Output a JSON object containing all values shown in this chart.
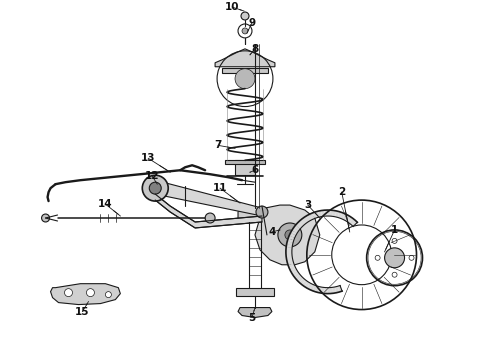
{
  "background_color": "#ffffff",
  "line_color": "#1a1a1a",
  "text_color": "#111111",
  "figsize": [
    4.9,
    3.6
  ],
  "dpi": 100,
  "xlim": [
    0.0,
    4.9
  ],
  "ylim": [
    0.0,
    3.6
  ]
}
